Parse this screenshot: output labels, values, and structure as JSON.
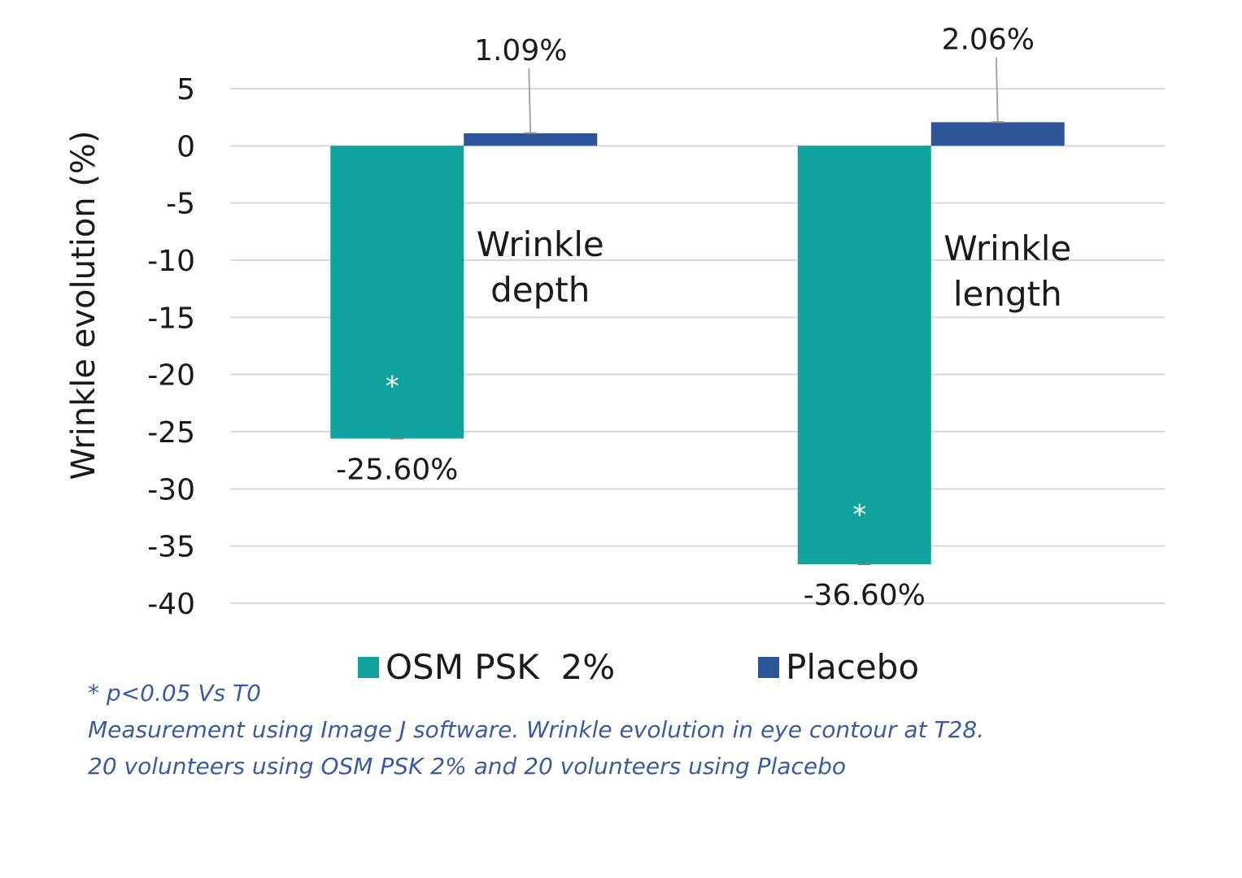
{
  "chart_data": {
    "type": "bar",
    "categories": [
      "Wrinkle depth",
      "Wrinkle length"
    ],
    "category_label_lines": [
      [
        "Wrinkle",
        "depth"
      ],
      [
        "Wrinkle",
        "length"
      ]
    ],
    "series": [
      {
        "name": "OSM PSK  2%",
        "color": "#10a39d",
        "values": [
          -25.6,
          -36.6
        ],
        "data_labels": [
          "-25.60%",
          "-36.60%"
        ],
        "significance_marks": [
          "*",
          "*"
        ]
      },
      {
        "name": "Placebo",
        "color": "#2e5597",
        "values": [
          1.09,
          2.06
        ],
        "data_labels": [
          "1.09%",
          "2.06%"
        ],
        "significance_marks": [
          "",
          ""
        ]
      }
    ],
    "ylabel": "Wrinkle evolution (%)",
    "xlabel": "",
    "ylim": [
      -40,
      5
    ],
    "yticks": [
      5,
      0,
      -5,
      -10,
      -15,
      -20,
      -25,
      -30,
      -35,
      -40
    ],
    "ytick_labels": [
      "5",
      "0",
      "-5",
      "-10",
      "-15",
      "-20",
      "-25",
      "-30",
      "-35",
      "-40"
    ],
    "grid": true,
    "legend_position": "bottom"
  },
  "legend": {
    "items": [
      {
        "label": "OSM PSK  2%",
        "color": "#10a39d"
      },
      {
        "label": "Placebo",
        "color": "#2e5597"
      }
    ]
  },
  "footnotes": {
    "significance": "* p<0.05 Vs T0",
    "method": "Measurement using Image J software.  Wrinkle evolution in eye contour at T28.",
    "population": "20 volunteers using OSM PSK 2% and 20 volunteers using Placebo"
  }
}
